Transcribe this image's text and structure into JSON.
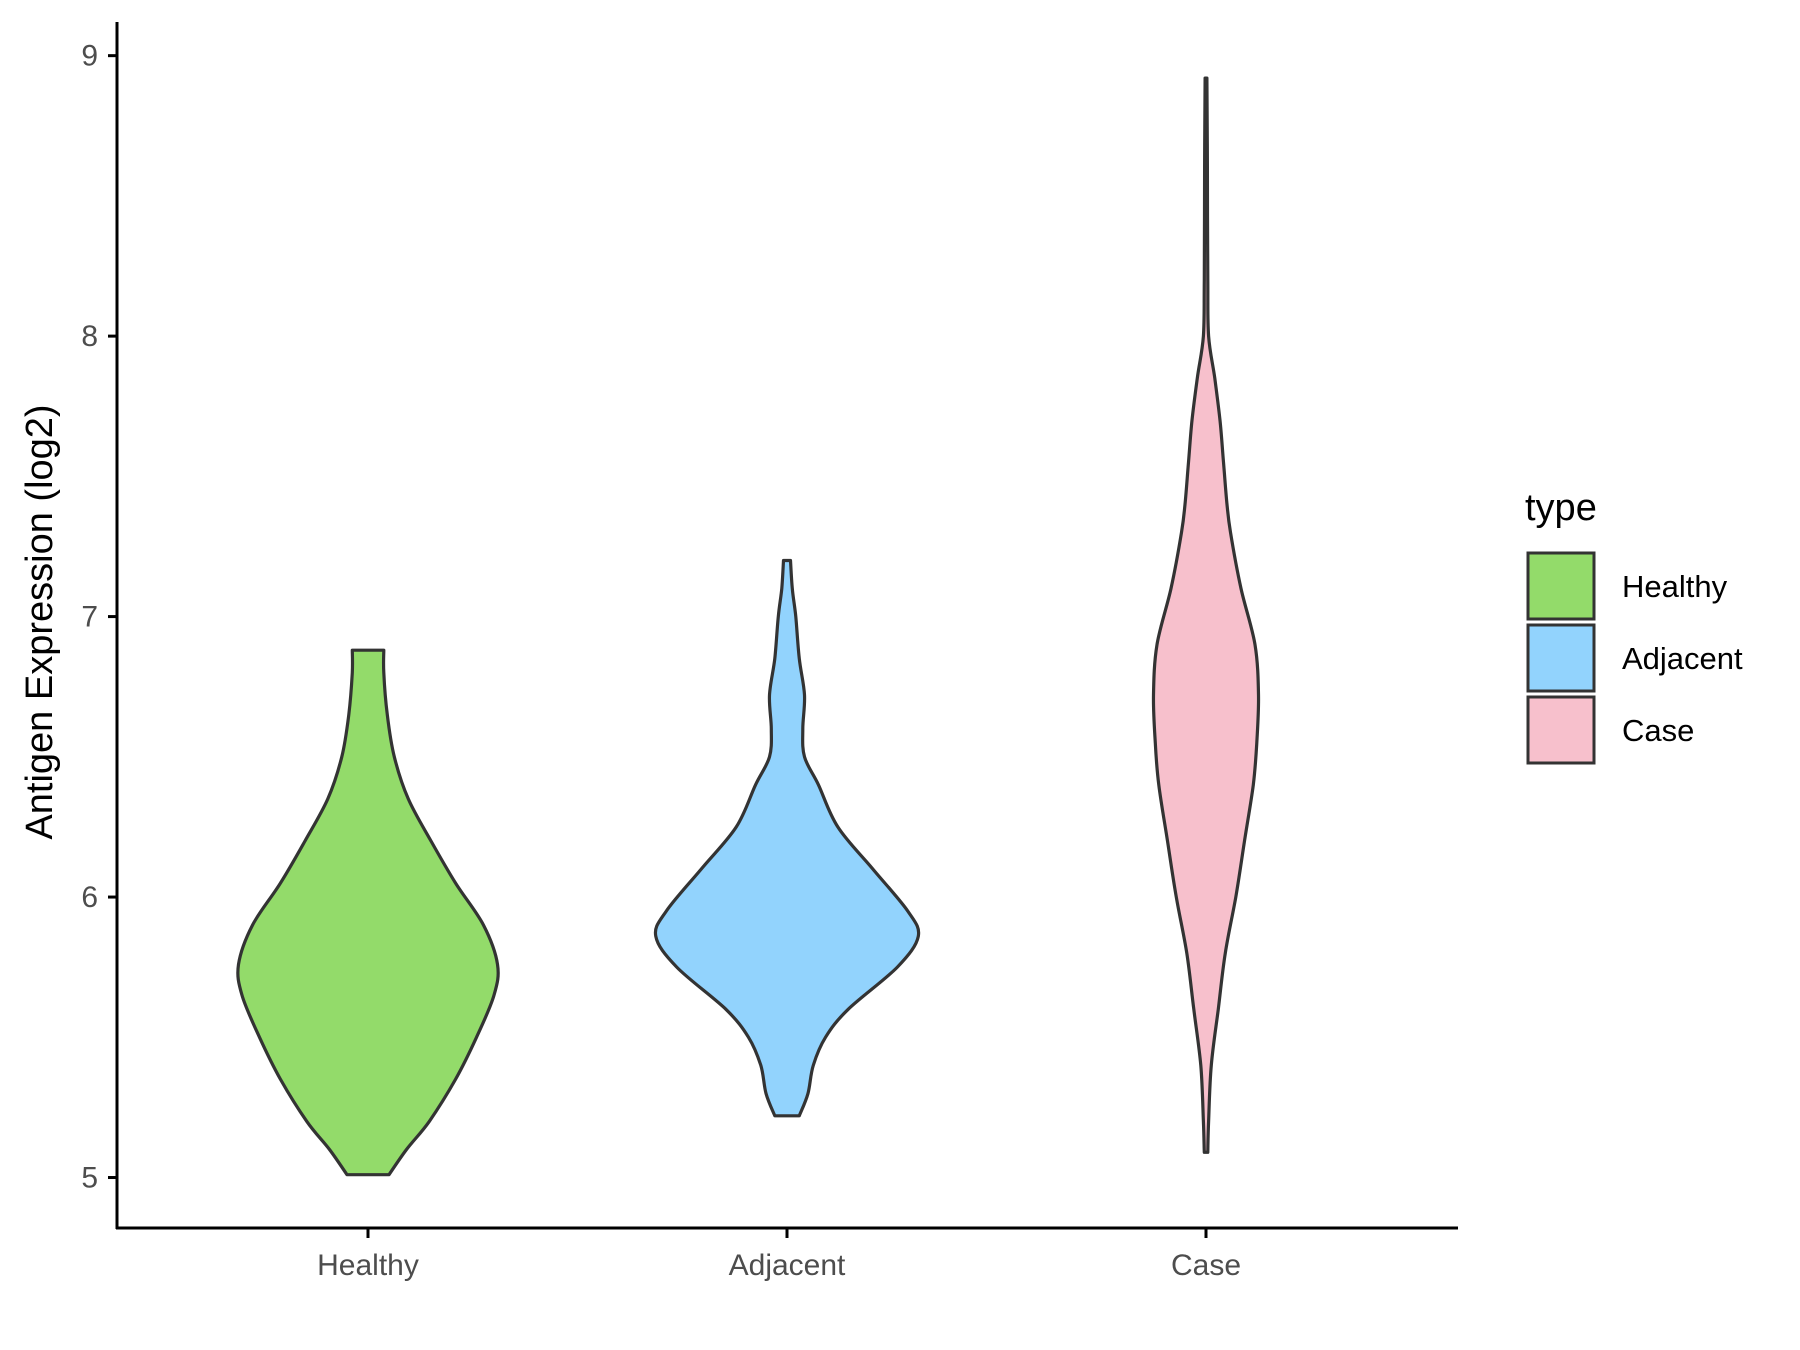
{
  "chart_data": {
    "type": "violin",
    "ylabel": "Antigen Expression (log2)",
    "xlabel": "",
    "ylim": [
      4.82,
      9.12
    ],
    "yticks": [
      5,
      6,
      7,
      8,
      9
    ],
    "categories": [
      "Healthy",
      "Adjacent",
      "Case"
    ],
    "legend": {
      "title": "type",
      "position": "right"
    },
    "grid": false,
    "series": [
      {
        "name": "Healthy",
        "color": "#93db6a",
        "min": 5.01,
        "max": 6.88,
        "density": [
          [
            5.01,
            0.12
          ],
          [
            5.1,
            0.22
          ],
          [
            5.2,
            0.35
          ],
          [
            5.35,
            0.5
          ],
          [
            5.5,
            0.62
          ],
          [
            5.65,
            0.72
          ],
          [
            5.76,
            0.74
          ],
          [
            5.9,
            0.66
          ],
          [
            6.05,
            0.5
          ],
          [
            6.2,
            0.36
          ],
          [
            6.35,
            0.23
          ],
          [
            6.5,
            0.15
          ],
          [
            6.65,
            0.11
          ],
          [
            6.8,
            0.09
          ],
          [
            6.88,
            0.09
          ]
        ]
      },
      {
        "name": "Adjacent",
        "color": "#92d3fd",
        "min": 5.22,
        "max": 7.2,
        "density": [
          [
            5.22,
            0.07
          ],
          [
            5.3,
            0.12
          ],
          [
            5.4,
            0.15
          ],
          [
            5.5,
            0.22
          ],
          [
            5.6,
            0.35
          ],
          [
            5.75,
            0.63
          ],
          [
            5.86,
            0.75
          ],
          [
            5.95,
            0.69
          ],
          [
            6.1,
            0.49
          ],
          [
            6.25,
            0.29
          ],
          [
            6.4,
            0.18
          ],
          [
            6.5,
            0.1
          ],
          [
            6.6,
            0.09
          ],
          [
            6.72,
            0.1
          ],
          [
            6.85,
            0.07
          ],
          [
            7.0,
            0.05
          ],
          [
            7.1,
            0.03
          ],
          [
            7.2,
            0.02
          ]
        ]
      },
      {
        "name": "Case",
        "color": "#f7c0cc",
        "min": 5.09,
        "max": 8.92,
        "density": [
          [
            5.09,
            0.01
          ],
          [
            5.2,
            0.015
          ],
          [
            5.4,
            0.03
          ],
          [
            5.6,
            0.07
          ],
          [
            5.8,
            0.11
          ],
          [
            6.0,
            0.17
          ],
          [
            6.2,
            0.22
          ],
          [
            6.4,
            0.27
          ],
          [
            6.55,
            0.29
          ],
          [
            6.72,
            0.3
          ],
          [
            6.9,
            0.28
          ],
          [
            7.1,
            0.2
          ],
          [
            7.3,
            0.14
          ],
          [
            7.4,
            0.12
          ],
          [
            7.55,
            0.1
          ],
          [
            7.7,
            0.08
          ],
          [
            7.85,
            0.05
          ],
          [
            8.0,
            0.015
          ],
          [
            8.2,
            0.01
          ],
          [
            8.6,
            0.008
          ],
          [
            8.92,
            0.005
          ]
        ]
      }
    ]
  }
}
